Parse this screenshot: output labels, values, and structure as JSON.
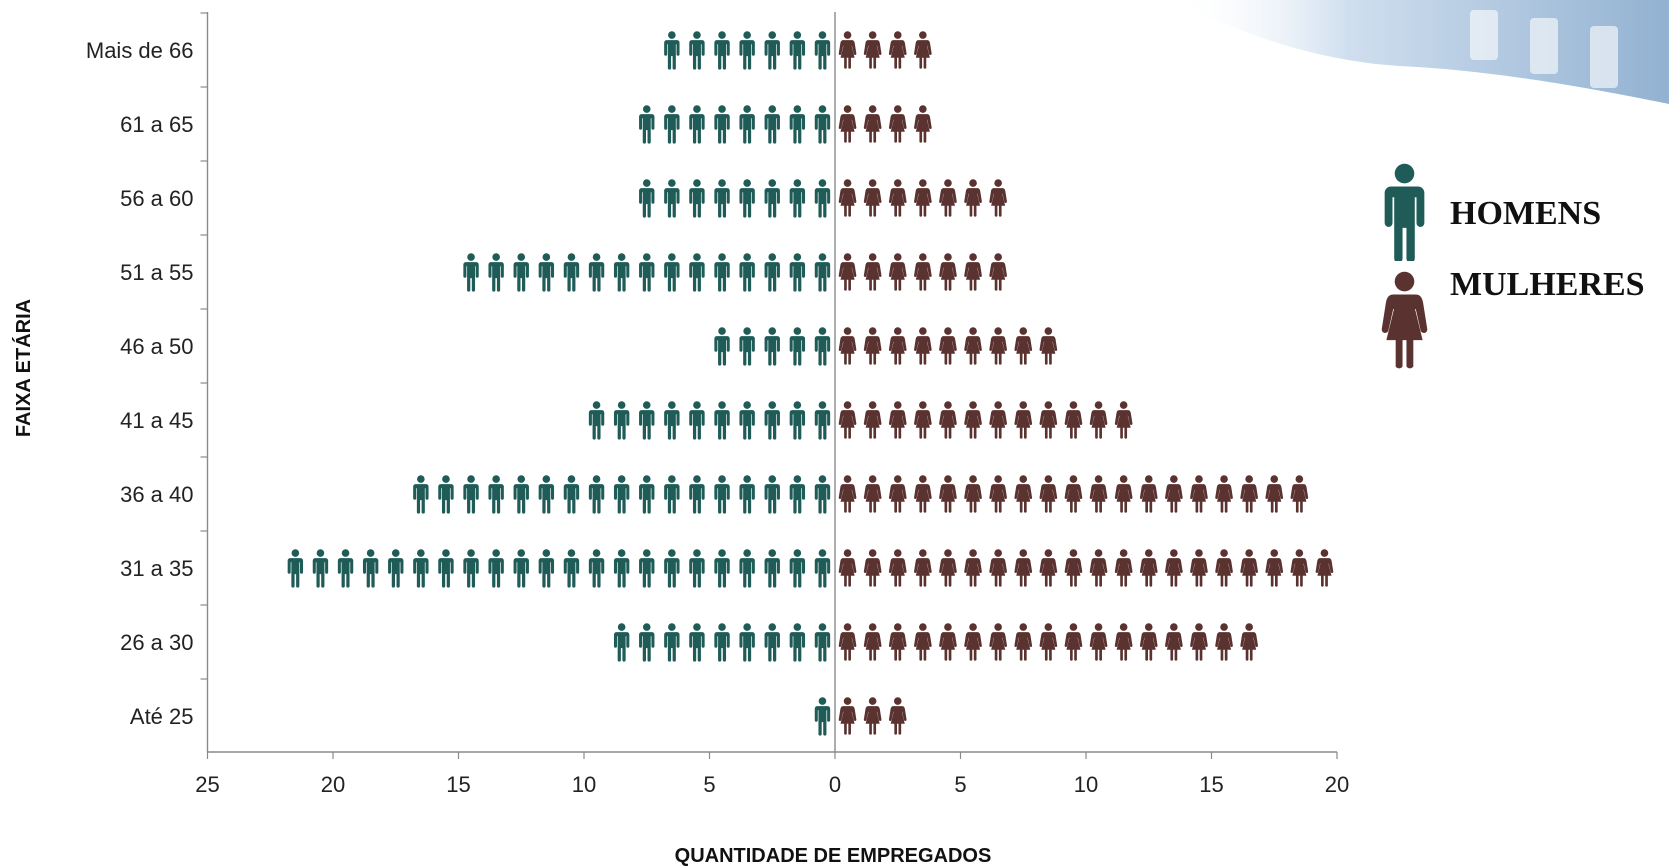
{
  "chart_data": {
    "type": "bar",
    "orientation": "horizontal",
    "style": "pictogram",
    "categories": [
      "Mais de 66",
      "61 a 65",
      "56 a 60",
      "51 a 55",
      "46 a 50",
      "41 a 45",
      "36 a 40",
      "31 a 35",
      "26 a 30",
      "Até 25"
    ],
    "series": [
      {
        "name": "HOMENS",
        "values": [
          7,
          8,
          8,
          15,
          5,
          10,
          17,
          22,
          9,
          1
        ],
        "color": "#1f5c58"
      },
      {
        "name": "MULHERES",
        "values": [
          4,
          4,
          7,
          7,
          9,
          12,
          19,
          20,
          17,
          3
        ],
        "color": "#5a3330"
      }
    ],
    "xlabel": "QUANTIDADE DE EMPREGADOS",
    "ylabel": "FAIXA ETÁRIA",
    "x_ticks_left": [
      "25",
      "20",
      "15",
      "10",
      "5",
      "0"
    ],
    "x_ticks_right": [
      "5",
      "10",
      "15",
      "20"
    ],
    "xlim_left": [
      0,
      25
    ],
    "xlim_right": [
      0,
      20
    ],
    "legend": {
      "placement": "right",
      "icons": [
        "man-icon",
        "woman-icon"
      ]
    },
    "grid": false,
    "axis_color": "#8a8a8a"
  }
}
